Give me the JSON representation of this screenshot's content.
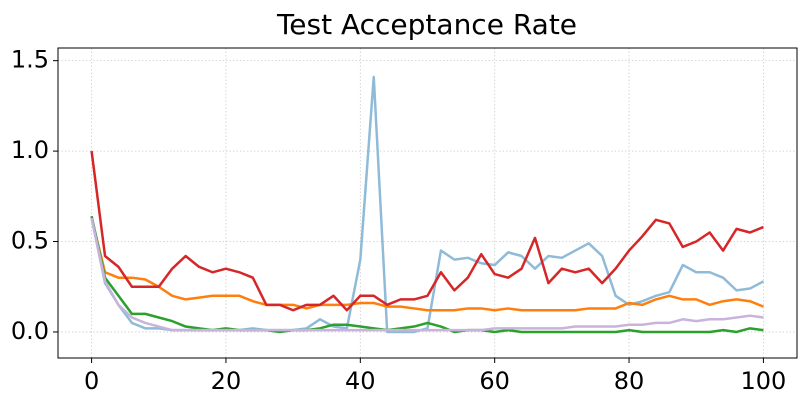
{
  "chart_data": {
    "type": "line",
    "title": "Test Acceptance Rate",
    "x": [
      0,
      2,
      4,
      6,
      8,
      10,
      12,
      14,
      16,
      18,
      20,
      22,
      24,
      26,
      28,
      30,
      32,
      34,
      36,
      38,
      40,
      42,
      44,
      46,
      48,
      50,
      52,
      54,
      56,
      58,
      60,
      62,
      64,
      66,
      68,
      70,
      72,
      74,
      76,
      78,
      80,
      82,
      84,
      86,
      88,
      90,
      92,
      94,
      96,
      98,
      100
    ],
    "series": [
      {
        "color": "#8fbbd9",
        "values": [
          0.63,
          0.27,
          0.15,
          0.05,
          0.02,
          0.02,
          0.01,
          0.01,
          0.01,
          0.01,
          0.01,
          0.01,
          0.02,
          0.01,
          0.01,
          0.01,
          0.02,
          0.07,
          0.03,
          0.02,
          0.4,
          1.41,
          0.0,
          0.0,
          0.0,
          0.02,
          0.45,
          0.4,
          0.41,
          0.38,
          0.37,
          0.44,
          0.42,
          0.35,
          0.42,
          0.41,
          0.45,
          0.49,
          0.42,
          0.2,
          0.15,
          0.17,
          0.2,
          0.22,
          0.37,
          0.33,
          0.33,
          0.3,
          0.23,
          0.24,
          0.28
        ]
      },
      {
        "color": "#ff7f0e",
        "values": [
          0.63,
          0.33,
          0.3,
          0.3,
          0.29,
          0.25,
          0.2,
          0.18,
          0.19,
          0.2,
          0.2,
          0.2,
          0.17,
          0.15,
          0.15,
          0.15,
          0.13,
          0.15,
          0.15,
          0.15,
          0.16,
          0.16,
          0.14,
          0.14,
          0.13,
          0.12,
          0.12,
          0.12,
          0.13,
          0.13,
          0.12,
          0.13,
          0.12,
          0.12,
          0.12,
          0.12,
          0.12,
          0.13,
          0.13,
          0.13,
          0.16,
          0.15,
          0.18,
          0.2,
          0.18,
          0.18,
          0.15,
          0.17,
          0.18,
          0.17,
          0.14
        ]
      },
      {
        "color": "#2ca02c",
        "values": [
          0.64,
          0.3,
          0.2,
          0.1,
          0.1,
          0.08,
          0.06,
          0.03,
          0.02,
          0.01,
          0.02,
          0.01,
          0.01,
          0.01,
          0.0,
          0.01,
          0.01,
          0.02,
          0.04,
          0.04,
          0.03,
          0.02,
          0.01,
          0.02,
          0.03,
          0.05,
          0.03,
          0.0,
          0.01,
          0.01,
          0.0,
          0.01,
          0.0,
          0.0,
          0.0,
          0.0,
          0.0,
          0.0,
          0.0,
          0.0,
          0.01,
          0.0,
          0.0,
          0.0,
          0.0,
          0.0,
          0.0,
          0.01,
          0.0,
          0.02,
          0.01
        ]
      },
      {
        "color": "#d62728",
        "values": [
          1.0,
          0.42,
          0.36,
          0.25,
          0.25,
          0.25,
          0.35,
          0.42,
          0.36,
          0.33,
          0.35,
          0.33,
          0.3,
          0.15,
          0.15,
          0.12,
          0.15,
          0.15,
          0.2,
          0.12,
          0.2,
          0.2,
          0.15,
          0.18,
          0.18,
          0.2,
          0.33,
          0.23,
          0.3,
          0.43,
          0.32,
          0.3,
          0.35,
          0.52,
          0.27,
          0.35,
          0.33,
          0.35,
          0.27,
          0.35,
          0.45,
          0.53,
          0.62,
          0.6,
          0.47,
          0.5,
          0.55,
          0.45,
          0.57,
          0.55,
          0.58
        ]
      },
      {
        "color": "#c9b3dd",
        "values": [
          0.63,
          0.28,
          0.15,
          0.08,
          0.05,
          0.03,
          0.01,
          0.01,
          0.01,
          0.01,
          0.01,
          0.01,
          0.01,
          0.01,
          0.01,
          0.01,
          0.01,
          0.01,
          0.01,
          0.01,
          0.01,
          0.01,
          0.01,
          0.01,
          0.01,
          0.01,
          0.01,
          0.01,
          0.01,
          0.01,
          0.02,
          0.02,
          0.02,
          0.02,
          0.02,
          0.02,
          0.03,
          0.03,
          0.03,
          0.03,
          0.04,
          0.04,
          0.05,
          0.05,
          0.07,
          0.06,
          0.07,
          0.07,
          0.08,
          0.09,
          0.08
        ]
      }
    ],
    "xlim": [
      -5,
      105
    ],
    "xticks": [
      0,
      20,
      40,
      60,
      80,
      100
    ],
    "ylim": [
      -0.144,
      1.57
    ],
    "yticks": [
      {
        "value": 0,
        "label": "0.0"
      },
      {
        "value": 0.5,
        "label": "0.5"
      },
      {
        "value": 1,
        "label": "1.0"
      },
      {
        "value": 1.5,
        "label": "1.5"
      }
    ],
    "grid": true
  }
}
